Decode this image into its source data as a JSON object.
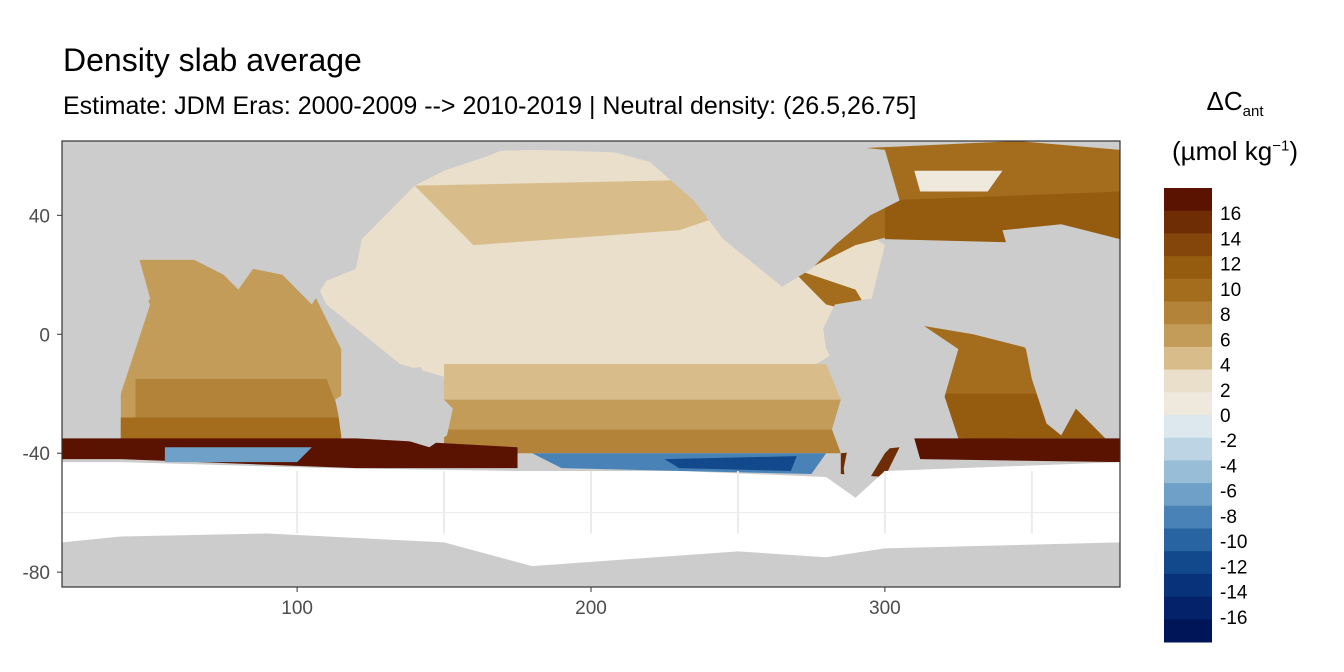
{
  "chart_data": {
    "type": "heatmap",
    "title": "Density slab average",
    "subtitle": "Estimate: JDM Eras: 2000-2009 --> 2010-2019 | Neutral density: (26.5,26.75]",
    "xlabel": "",
    "ylabel": "",
    "xlim": [
      20,
      380
    ],
    "ylim": [
      -85,
      65
    ],
    "x_ticks": [
      100,
      200,
      300
    ],
    "y_ticks": [
      40,
      0,
      -40,
      -80
    ],
    "legend": {
      "title_main": "ΔC",
      "title_sub": "ant",
      "unit_main": "(µmol kg",
      "unit_sup": "−1",
      "unit_close": ")",
      "labels": [
        "16",
        "14",
        "12",
        "10",
        "8",
        "6",
        "4",
        "2",
        "0",
        "-2",
        "-4",
        "-6",
        "-8",
        "-10",
        "-12",
        "-14",
        "-16"
      ],
      "colors": [
        "#5a1300",
        "#6e2d05",
        "#84460b",
        "#955b0f",
        "#a46d1e",
        "#b28338",
        "#c49c5a",
        "#d8bc8a",
        "#e9dfcb",
        "#eee8dd",
        "#dce7ee",
        "#bcd4e4",
        "#97bdd7",
        "#6fa0c8",
        "#4882b6",
        "#2864a2",
        "#12498d",
        "#08337a",
        "#03226a",
        "#001458"
      ]
    },
    "colors": {
      "land": "#cccccc",
      "no_data": "#ffffff",
      "grid": "#ebebeb",
      "frame": "#333333"
    }
  }
}
